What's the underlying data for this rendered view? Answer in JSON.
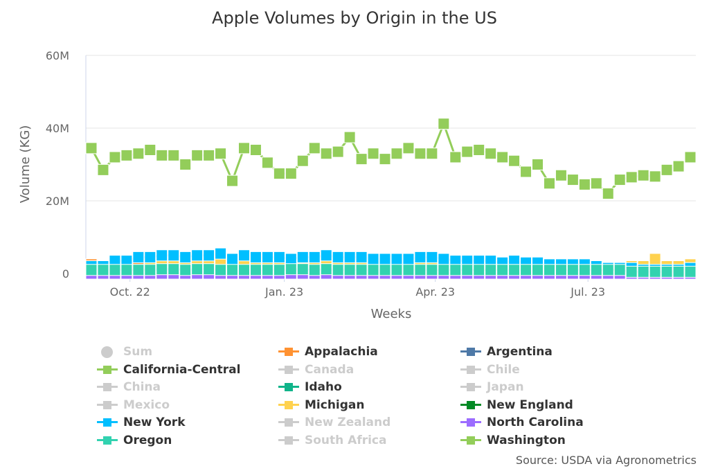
{
  "chart_data": {
    "type": "line",
    "title": "Apple Volumes by Origin in the US",
    "xlabel": "Weeks",
    "ylabel": "Volume (KG)",
    "ylim": [
      0,
      60000000
    ],
    "yticks": [
      {
        "v": 0,
        "label": "0"
      },
      {
        "v": 20000000,
        "label": "20M"
      },
      {
        "v": 40000000,
        "label": "40M"
      },
      {
        "v": 60000000,
        "label": "60M"
      }
    ],
    "xticks": [
      {
        "date": "2022-10-01",
        "label": "Oct. 22"
      },
      {
        "date": "2023-01-01",
        "label": "Jan. 23"
      },
      {
        "date": "2023-04-01",
        "label": "Apr. 23"
      },
      {
        "date": "2023-07-01",
        "label": "Jul. 23"
      }
    ],
    "grid": true,
    "legend_placement": "bottom",
    "x": [
      "2022-09-08",
      "2022-09-15",
      "2022-09-22",
      "2022-09-29",
      "2022-10-06",
      "2022-10-13",
      "2022-10-20",
      "2022-10-27",
      "2022-11-03",
      "2022-11-10",
      "2022-11-17",
      "2022-11-24",
      "2022-12-01",
      "2022-12-08",
      "2022-12-15",
      "2022-12-22",
      "2022-12-29",
      "2023-01-05",
      "2023-01-12",
      "2023-01-19",
      "2023-01-26",
      "2023-02-02",
      "2023-02-09",
      "2023-02-16",
      "2023-02-23",
      "2023-03-02",
      "2023-03-09",
      "2023-03-16",
      "2023-03-23",
      "2023-03-30",
      "2023-04-06",
      "2023-04-13",
      "2023-04-20",
      "2023-04-27",
      "2023-05-04",
      "2023-05-11",
      "2023-05-18",
      "2023-05-25",
      "2023-06-01",
      "2023-06-08",
      "2023-06-15",
      "2023-06-22",
      "2023-06-29",
      "2023-07-06",
      "2023-07-13",
      "2023-07-20",
      "2023-07-27",
      "2023-08-03",
      "2023-08-10",
      "2023-08-17",
      "2023-08-24",
      "2023-08-31"
    ],
    "value_unit_multiplier": 1000000,
    "series": [
      {
        "name": "Sum",
        "color": "#cccccc",
        "visible": false,
        "marker": "circle"
      },
      {
        "name": "Appalachia",
        "color": "#ff9232",
        "visible": true,
        "values": [
          2.5,
          1,
          1,
          1,
          1.5,
          2,
          2,
          2,
          2,
          2,
          1.5,
          2,
          1.5,
          2,
          1.5,
          1.5,
          1.5,
          1.5,
          1.5,
          1.5,
          1.5,
          1.5,
          1.5,
          1.5,
          1.5,
          1,
          1,
          1,
          1,
          1,
          1,
          1,
          1,
          1,
          0.8,
          0.8,
          0.8,
          0.6,
          0.6,
          0.6,
          0.6,
          0.6,
          0.5,
          0.5,
          0.5,
          0.5,
          0.3,
          0.3,
          0.3,
          0.3,
          0.3,
          0.3
        ]
      },
      {
        "name": "Argentina",
        "color": "#4e79a7",
        "visible": true,
        "values": [
          0,
          0,
          0,
          0,
          0,
          0,
          0,
          0,
          0,
          0,
          0,
          0,
          0,
          0,
          0,
          0,
          0,
          0,
          0,
          0,
          0,
          0,
          0,
          0,
          0,
          0,
          0,
          0,
          0,
          0,
          0,
          0,
          0,
          0,
          0,
          0,
          0,
          0,
          0,
          0,
          0,
          0,
          0,
          0,
          0,
          0,
          0,
          0,
          0,
          0,
          0,
          0
        ]
      },
      {
        "name": "California-Central",
        "color": "#93cd5a",
        "visible": true,
        "values": [
          0.2,
          0.2,
          0.2,
          0.2,
          0.2,
          0.2,
          0.2,
          0.2,
          0.2,
          0.2,
          0.2,
          0.2,
          0.2,
          0.2,
          0.2,
          0.2,
          0.2,
          0.2,
          0.2,
          0.2,
          0.2,
          0.2,
          0.2,
          0.2,
          0.2,
          0.2,
          0.2,
          0.2,
          0.2,
          0.2,
          0.2,
          0.2,
          0.2,
          0.2,
          0.2,
          0.2,
          0.2,
          0.2,
          0.2,
          0.2,
          0.2,
          0.2,
          0.2,
          0.2,
          0.2,
          0.2,
          0.2,
          0.2,
          0.2,
          0.2,
          0.2,
          0.2
        ]
      },
      {
        "name": "Canada",
        "color": "#cccccc",
        "visible": false
      },
      {
        "name": "Chile",
        "color": "#cccccc",
        "visible": false
      },
      {
        "name": "China",
        "color": "#cccccc",
        "visible": false
      },
      {
        "name": "Idaho",
        "color": "#10b48a",
        "visible": true,
        "values": [
          0.5,
          0.5,
          0.5,
          0.5,
          0.5,
          0.5,
          0.5,
          0.5,
          0.5,
          0.5,
          0.5,
          0.5,
          0.5,
          0.5,
          0.5,
          0.5,
          0.5,
          0.5,
          0.5,
          0.5,
          0.5,
          0.5,
          0.5,
          0.5,
          0.5,
          0.5,
          0.5,
          0.5,
          0.5,
          0.5,
          0.5,
          0.5,
          0.5,
          0.5,
          0.5,
          0.5,
          0.5,
          0.5,
          0.5,
          0.5,
          0.5,
          0.5,
          0.5,
          0.5,
          0.5,
          0.5,
          0.5,
          0.5,
          0.5,
          0.5,
          0.5,
          0.5
        ]
      },
      {
        "name": "Japan",
        "color": "#cccccc",
        "visible": false
      },
      {
        "name": "Mexico",
        "color": "#cccccc",
        "visible": false
      },
      {
        "name": "Michigan",
        "color": "#ffd24f",
        "visible": true,
        "values": [
          1,
          0.5,
          0.5,
          1,
          1,
          1.5,
          2.5,
          2.5,
          3,
          3,
          2.5,
          3,
          1.5,
          2.5,
          2,
          2,
          1.5,
          2.5,
          2.5,
          2.5,
          2.5,
          2,
          2.5,
          2,
          1.5,
          1.5,
          1.5,
          1.5,
          2.5,
          2.5,
          2,
          2,
          2,
          1.5,
          1.5,
          1.5,
          1.5,
          1.5,
          1,
          1,
          1,
          1,
          1,
          1,
          1,
          1.5,
          2,
          2,
          4,
          2,
          2,
          2.5
        ]
      },
      {
        "name": "New England",
        "color": "#038a25",
        "visible": true,
        "values": [
          0,
          0,
          0,
          0,
          0,
          0,
          0,
          0,
          0,
          0,
          0,
          0,
          0,
          0,
          0,
          0,
          0,
          0,
          0,
          0,
          0,
          0,
          0,
          0,
          0,
          0,
          0,
          0,
          0,
          0,
          0,
          0,
          0,
          0,
          0,
          0,
          0,
          0,
          0,
          0,
          0,
          0,
          0,
          0,
          0,
          0,
          0,
          0,
          0,
          0,
          0,
          0
        ]
      },
      {
        "name": "New York",
        "color": "#00bfff",
        "visible": true,
        "values": [
          2,
          2,
          3.5,
          3.5,
          4.5,
          4.5,
          5,
          5,
          4.5,
          5,
          5,
          5.5,
          4,
          5,
          4.5,
          4.5,
          4.5,
          4,
          4.5,
          4.5,
          5,
          4.5,
          4.5,
          4.5,
          4,
          4,
          4,
          4,
          4.5,
          4.5,
          4,
          3.5,
          3.5,
          3.5,
          3.5,
          3,
          3.5,
          3,
          3,
          2.5,
          2.5,
          2.5,
          2.5,
          2,
          1.5,
          1.5,
          1.5,
          1,
          1,
          1,
          1,
          1.5
        ]
      },
      {
        "name": "New Zealand",
        "color": "#cccccc",
        "visible": false
      },
      {
        "name": "North Carolina",
        "color": "#9c6cff",
        "visible": true,
        "values": [
          0,
          0,
          0,
          0,
          0,
          0,
          0,
          0,
          0,
          0,
          0,
          0,
          0,
          0,
          0,
          0,
          0,
          0,
          0,
          0,
          0,
          0,
          0,
          0,
          0,
          0,
          0,
          0,
          0,
          0,
          0,
          0,
          0,
          0,
          0,
          0,
          0,
          0,
          0,
          0,
          0,
          0,
          0,
          0,
          0,
          0,
          0,
          0,
          0,
          0,
          0,
          0
        ]
      },
      {
        "name": "Oregon",
        "color": "#32d2b0",
        "visible": true,
        "values": [
          1,
          1,
          1,
          1,
          1,
          1,
          1.2,
          1.2,
          1,
          1.2,
          1.2,
          1,
          1,
          1,
          1,
          1,
          1,
          1.2,
          1.2,
          1,
          1.2,
          1,
          1,
          1,
          1,
          1,
          1,
          1,
          1,
          1,
          1,
          1,
          1,
          1,
          1,
          1,
          1,
          1,
          1,
          1,
          1,
          1,
          1,
          1,
          1,
          1,
          0.5,
          0.5,
          0.5,
          0.5,
          0.5,
          0.5
        ]
      },
      {
        "name": "South Africa",
        "color": "#cccccc",
        "visible": false
      },
      {
        "name": "Washington",
        "color": "#93cd5a",
        "visible": true,
        "values": [
          34.5,
          28.5,
          32,
          32.5,
          33,
          34,
          32.5,
          32.5,
          30,
          32.5,
          32.5,
          33,
          25.5,
          34.5,
          34,
          30.5,
          27.5,
          27.5,
          31,
          34.5,
          33,
          33.5,
          37.5,
          31.5,
          33,
          31.5,
          33,
          34.5,
          33,
          33,
          41.2,
          32,
          33.5,
          34,
          33,
          32,
          31,
          28,
          30,
          24.8,
          27,
          25.8,
          24.5,
          24.8,
          22,
          25.8,
          26.5,
          27,
          26.7,
          28.5,
          29.5,
          32
        ]
      }
    ]
  },
  "source": "Source: USDA via Agronometrics"
}
